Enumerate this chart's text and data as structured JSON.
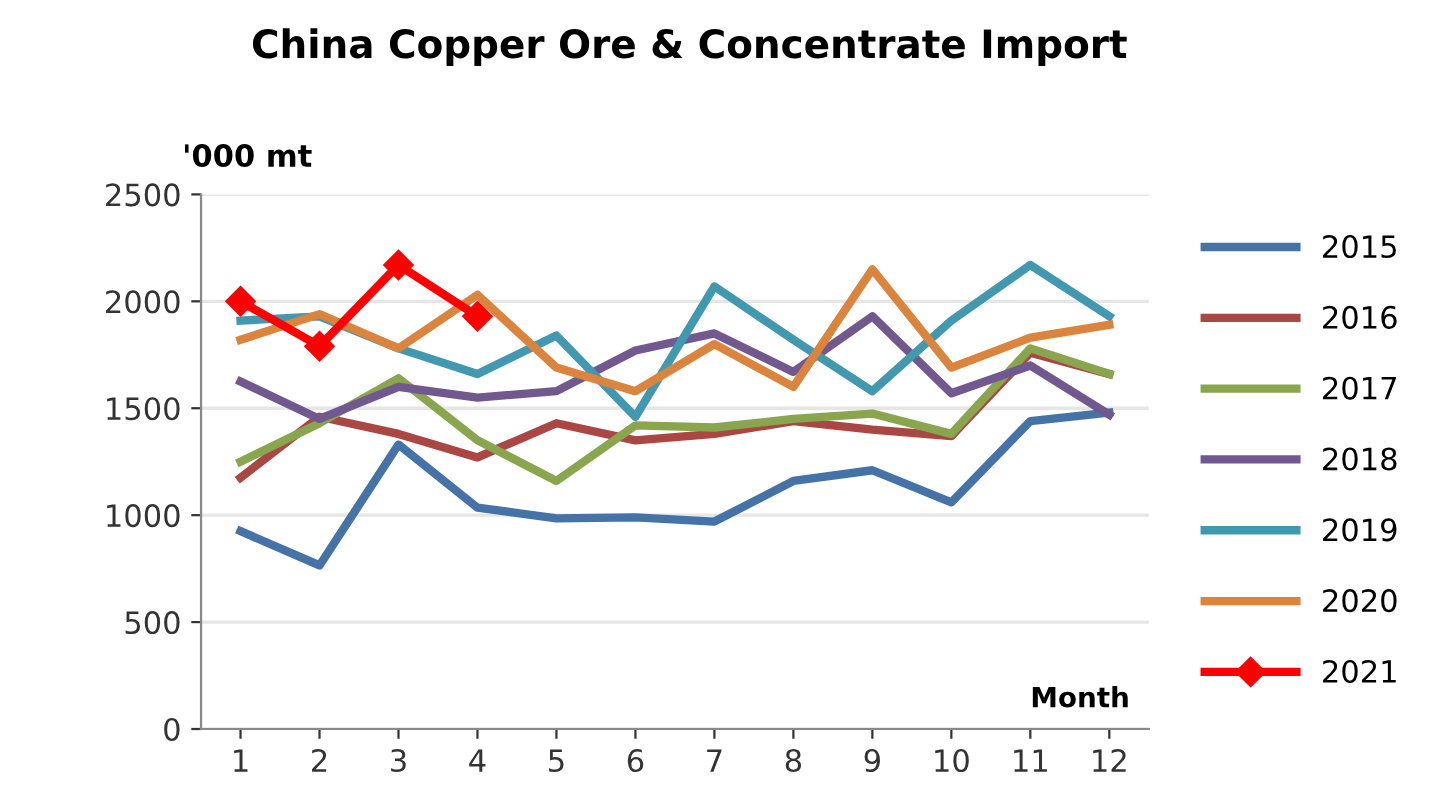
{
  "chart_data": {
    "type": "line",
    "title": "China Copper Ore & Concentrate Import",
    "ylabel": "'000 mt",
    "xlabel": "Month",
    "categories": [
      "1",
      "2",
      "3",
      "4",
      "5",
      "6",
      "7",
      "8",
      "9",
      "10",
      "11",
      "12"
    ],
    "series": [
      {
        "name": "2015",
        "color": "#4572a7",
        "values": [
          925,
          765,
          1330,
          1035,
          985,
          990,
          970,
          1160,
          1210,
          1060,
          1440,
          1480
        ]
      },
      {
        "name": "2016",
        "color": "#aa4643",
        "values": [
          1175,
          1460,
          1380,
          1270,
          1430,
          1350,
          1380,
          1440,
          1400,
          1370,
          1760,
          1660
        ]
      },
      {
        "name": "2017",
        "color": "#89a54e",
        "values": [
          1250,
          1430,
          1640,
          1350,
          1160,
          1420,
          1410,
          1450,
          1475,
          1380,
          1780,
          1660
        ]
      },
      {
        "name": "2018",
        "color": "#71588f",
        "values": [
          1625,
          1450,
          1600,
          1550,
          1580,
          1770,
          1850,
          1670,
          1930,
          1570,
          1700,
          1470
        ]
      },
      {
        "name": "2019",
        "color": "#4198af",
        "values": [
          1910,
          1930,
          1780,
          1660,
          1840,
          1460,
          2070,
          1820,
          1580,
          1910,
          2170,
          1930
        ]
      },
      {
        "name": "2020",
        "color": "#db843d",
        "values": [
          1820,
          1940,
          1780,
          2030,
          1690,
          1580,
          1800,
          1600,
          2150,
          1690,
          1830,
          1890
        ]
      },
      {
        "name": "2021",
        "color": "#ff0000",
        "marker": "diamond",
        "values": [
          2000,
          1790,
          2170,
          1930,
          null,
          null,
          null,
          null,
          null,
          null,
          null,
          null
        ]
      }
    ],
    "ylim": [
      0,
      2500
    ],
    "yticks": [
      0,
      500,
      1000,
      1500,
      2000,
      2500
    ],
    "grid": "y",
    "legend": "right"
  }
}
